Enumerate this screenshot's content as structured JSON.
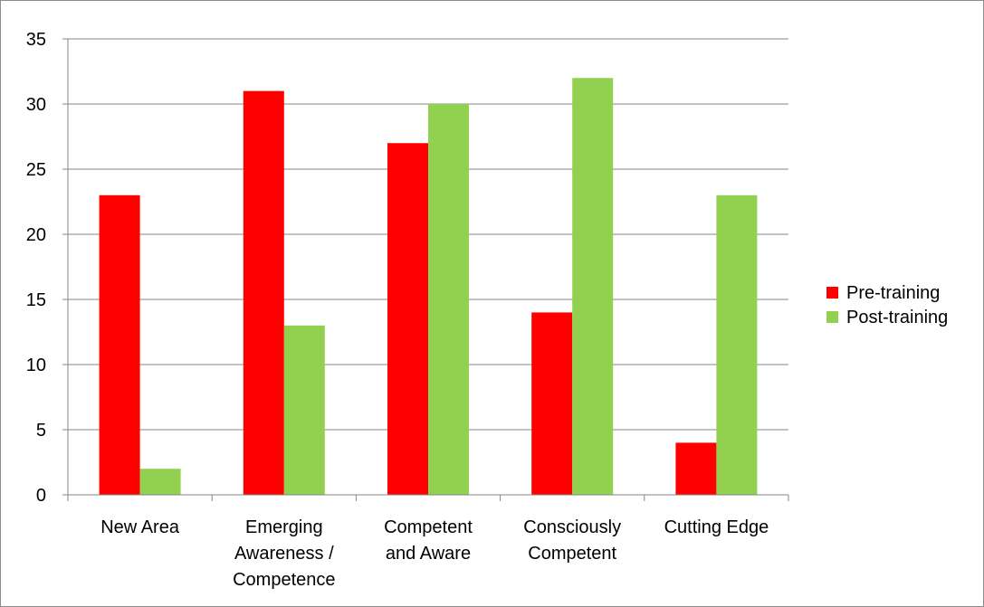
{
  "chart_data": {
    "type": "bar",
    "categories": [
      [
        "New Area"
      ],
      [
        "Emerging",
        "Awareness /",
        "Competence"
      ],
      [
        "Competent",
        "and Aware"
      ],
      [
        "Consciously",
        "Competent"
      ],
      [
        "Cutting Edge"
      ]
    ],
    "series": [
      {
        "name": "Pre-training",
        "values": [
          23,
          31,
          27,
          14,
          4
        ],
        "color": "#ff0000"
      },
      {
        "name": "Post-training",
        "values": [
          2,
          13,
          30,
          32,
          23
        ],
        "color": "#92d050"
      }
    ],
    "ylim": [
      0,
      35
    ],
    "yticks": [
      0,
      5,
      10,
      15,
      20,
      25,
      30,
      35
    ],
    "grid": true,
    "legend": "right",
    "title": "",
    "xlabel": "",
    "ylabel": ""
  }
}
